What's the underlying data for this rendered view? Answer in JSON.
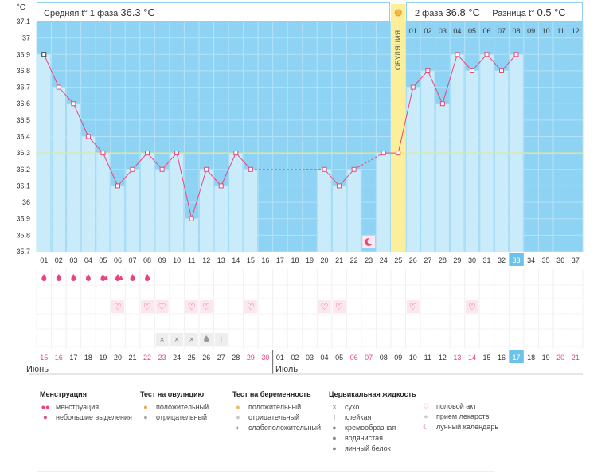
{
  "header": {
    "phase1_label": "Средняя t° 1 фаза",
    "phase1_value": "36.3 °C",
    "phase2_label": "2 фаза",
    "phase2_value": "36.8 °C",
    "diff_label": "Разница t°",
    "diff_value": "0.5 °C"
  },
  "ovulation_label": "ОВУЛЯЦИЯ",
  "months": {
    "first": "Июнь",
    "second": "Июль"
  },
  "chart_data": {
    "type": "line",
    "ylabel": "°C",
    "ylim": [
      35.7,
      37.1
    ],
    "yticks": [
      "35.7",
      "35.8",
      "35.9",
      "36",
      "36.1",
      "36.2",
      "36.3",
      "36.4",
      "36.5",
      "36.6",
      "36.7",
      "36.8",
      "36.9",
      "37",
      "37.1"
    ],
    "cycle_days": [
      "01",
      "02",
      "03",
      "04",
      "05",
      "06",
      "07",
      "08",
      "09",
      "10",
      "11",
      "12",
      "13",
      "14",
      "15",
      "16",
      "17",
      "18",
      "19",
      "20",
      "21",
      "22",
      "23",
      "24",
      "25",
      "26",
      "27",
      "28",
      "29",
      "30",
      "31",
      "32",
      "33",
      "34",
      "35",
      "36",
      "37"
    ],
    "phase2_days": [
      "01",
      "02",
      "03",
      "04",
      "05",
      "06",
      "07",
      "08",
      "09",
      "10",
      "11",
      "12"
    ],
    "dates": [
      "15",
      "16",
      "17",
      "18",
      "19",
      "20",
      "21",
      "22",
      "23",
      "24",
      "25",
      "26",
      "27",
      "28",
      "29",
      "30",
      "01",
      "02",
      "03",
      "04",
      "05",
      "06",
      "07",
      "08",
      "09",
      "10",
      "11",
      "12",
      "13",
      "14",
      "15",
      "16",
      "17",
      "18",
      "19",
      "20",
      "21"
    ],
    "red_date_indices": [
      0,
      1,
      7,
      8,
      14,
      15,
      21,
      22,
      28,
      29,
      35,
      36
    ],
    "temperatures": [
      36.9,
      36.7,
      36.6,
      36.4,
      36.3,
      36.1,
      36.2,
      36.3,
      36.2,
      36.3,
      35.9,
      36.2,
      36.1,
      36.3,
      36.2,
      null,
      null,
      null,
      null,
      36.2,
      36.1,
      36.2,
      null,
      36.3,
      36.3,
      36.7,
      36.8,
      36.6,
      36.9,
      36.8,
      36.9,
      36.8,
      36.9
    ],
    "coverline": 36.3,
    "ovulation_day_index": 24,
    "current_day_index": 32,
    "menstruation": [
      0,
      1,
      2,
      3,
      4,
      5,
      6,
      7
    ],
    "menstruation_heavy": [
      4,
      5
    ],
    "intercourse": [
      5,
      7,
      8,
      10,
      11,
      14,
      19,
      20,
      25,
      29
    ],
    "cervical_dry": [
      8,
      9,
      10
    ],
    "cervical_watery": [
      11
    ],
    "cervical_sticky": [
      12
    ],
    "moon_day_index": 22,
    "colors": {
      "sky": "#8fd3f4",
      "bar": "#c9ebfa",
      "line": "#e8457b",
      "ovulation": "#fbef9c",
      "coverline": "#e8e88a",
      "today": "#6cc3ea"
    }
  },
  "legend": {
    "menstruation": {
      "title": "Менструация",
      "items": [
        "менструация",
        "небольшие выделения"
      ]
    },
    "ovulation_test": {
      "title": "Тест на овуляцию",
      "items": [
        "положительный",
        "отрицательный"
      ]
    },
    "pregnancy_test": {
      "title": "Тест на беременность",
      "items": [
        "положительный",
        "отрицательный",
        "слабоположительный"
      ]
    },
    "cervical": {
      "title": "Цервикальная жидкость",
      "items": [
        "сухо",
        "клейкая",
        "кремообразная",
        "водянистая",
        "яичный белок"
      ]
    },
    "other": {
      "items": [
        "половой акт",
        "прием лекарств",
        "лунный календарь"
      ]
    }
  }
}
